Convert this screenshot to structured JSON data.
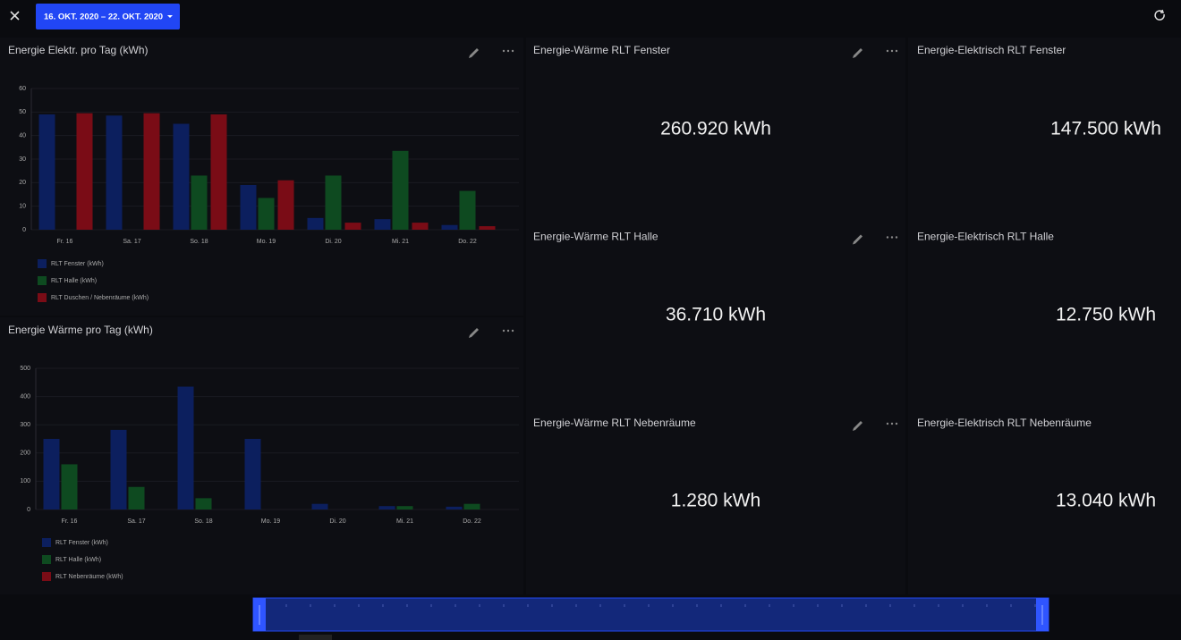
{
  "header": {
    "date_range": "16. OKT. 2020 – 22. OKT. 2020"
  },
  "chart_data": [
    {
      "type": "bar",
      "title": "Energie Elektr. pro Tag (kWh)",
      "categories": [
        "Fr. 16",
        "Sa. 17",
        "So. 18",
        "Mo. 19",
        "Di. 20",
        "Mi. 21",
        "Do. 22"
      ],
      "series": [
        {
          "name": "RLT Fenster (kWh)",
          "color": "#0c1f5e",
          "values": [
            49,
            48.5,
            45,
            19,
            5,
            4.5,
            2
          ]
        },
        {
          "name": "RLT Halle (kWh)",
          "color": "#0e4a20",
          "values": [
            0,
            0,
            23,
            13.5,
            23,
            33.5,
            16.5
          ]
        },
        {
          "name": "RLT Duschen / Nebenräume (kWh)",
          "color": "#7a0c16",
          "values": [
            49.5,
            49.5,
            49,
            21,
            3,
            3,
            1.5
          ]
        }
      ],
      "ylim": [
        0,
        60
      ],
      "yticks": [
        0,
        10,
        20,
        30,
        40,
        50,
        60
      ]
    },
    {
      "type": "bar",
      "title": "Energie Wärme pro Tag (kWh)",
      "categories": [
        "Fr. 16",
        "Sa. 17",
        "So. 18",
        "Mo. 19",
        "Di. 20",
        "Mi. 21",
        "Do. 22"
      ],
      "series": [
        {
          "name": "RLT Fenster (kWh)",
          "color": "#0c1f5e",
          "values": [
            250,
            282,
            435,
            250,
            20,
            12,
            10
          ]
        },
        {
          "name": "RLT Halle (kWh)",
          "color": "#0e4a20",
          "values": [
            160,
            80,
            40,
            0,
            0,
            12,
            20
          ]
        },
        {
          "name": "RLT Nebenräume (kWh)",
          "color": "#7a0c16",
          "values": [
            0,
            0,
            0,
            0,
            0,
            0,
            0
          ]
        }
      ],
      "ylim": [
        0,
        500
      ],
      "yticks": [
        0,
        100,
        200,
        300,
        400,
        500
      ]
    }
  ],
  "tiles": [
    {
      "title": "Energie-Wärme RLT Fenster",
      "value": "260.920 kWh"
    },
    {
      "title": "Energie-Elektrisch RLT Fenster",
      "value": "147.500 kWh"
    },
    {
      "title": "Energie-Wärme RLT Halle",
      "value": "36.710 kWh"
    },
    {
      "title": "Energie-Elektrisch RLT Halle",
      "value": "12.750 kWh"
    },
    {
      "title": "Energie-Wärme RLT Nebenräume",
      "value": "1.280 kWh"
    },
    {
      "title": "Energie-Elektrisch RLT Nebenräume",
      "value": "13.040 kWh"
    }
  ]
}
